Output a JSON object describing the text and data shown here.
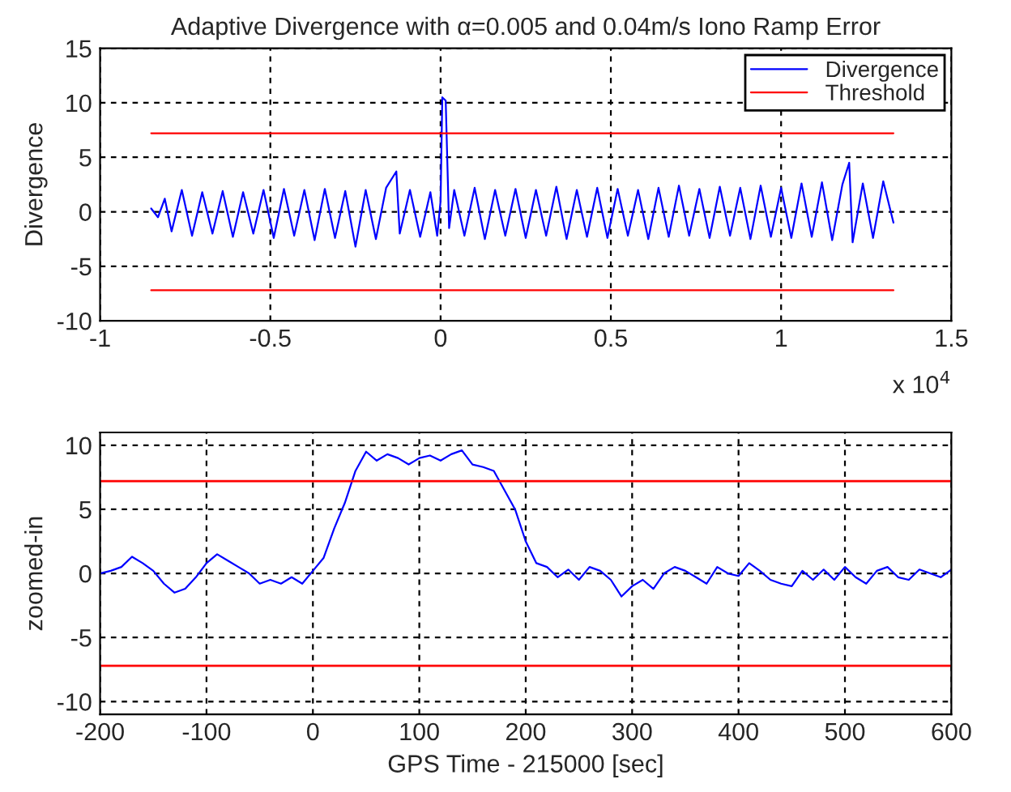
{
  "chart_data": [
    {
      "type": "line",
      "title": "Adaptive Divergence with α=0.005 and 0.04m/s Iono Ramp Error",
      "ylabel": "Divergence",
      "xlim": [
        -1,
        1.5
      ],
      "xticks": [
        -1,
        -0.5,
        0,
        0.5,
        1,
        1.5
      ],
      "ylim": [
        -10,
        15
      ],
      "yticks": [
        -10,
        -5,
        0,
        5,
        10,
        15
      ],
      "grid": true,
      "legend": "top right",
      "line_style": "solid",
      "annotations": [
        "x 10$^{4}$"
      ],
      "series": [
        {
          "name": "Divergence",
          "color": "#0000ff",
          "x": [
            -0.85,
            -0.83,
            -0.81,
            -0.79,
            -0.76,
            -0.73,
            -0.7,
            -0.67,
            -0.64,
            -0.61,
            -0.58,
            -0.55,
            -0.52,
            -0.49,
            -0.46,
            -0.43,
            -0.4,
            -0.37,
            -0.34,
            -0.31,
            -0.28,
            -0.25,
            -0.22,
            -0.19,
            -0.16,
            -0.13,
            -0.12,
            -0.09,
            -0.06,
            -0.03,
            -0.01,
            0,
            0.005,
            0.015,
            0.025,
            0.04,
            0.07,
            0.1,
            0.13,
            0.16,
            0.19,
            0.22,
            0.25,
            0.28,
            0.31,
            0.34,
            0.37,
            0.4,
            0.43,
            0.46,
            0.49,
            0.52,
            0.55,
            0.58,
            0.61,
            0.64,
            0.67,
            0.7,
            0.73,
            0.76,
            0.79,
            0.82,
            0.85,
            0.88,
            0.91,
            0.94,
            0.97,
            1.0,
            1.03,
            1.06,
            1.09,
            1.12,
            1.15,
            1.18,
            1.2,
            1.21,
            1.24,
            1.27,
            1.3,
            1.33
          ],
          "values": [
            0.3,
            -0.5,
            1.2,
            -1.8,
            2.0,
            -2.2,
            1.8,
            -2.0,
            1.9,
            -2.3,
            1.8,
            -2.0,
            2.0,
            -2.4,
            2.1,
            -2.2,
            2.0,
            -2.6,
            2.1,
            -2.4,
            1.9,
            -3.2,
            2.0,
            -2.5,
            2.2,
            3.7,
            -2.0,
            2.0,
            -2.3,
            1.8,
            -2.2,
            1.0,
            10.5,
            10.2,
            -1.5,
            2.0,
            -2.2,
            2.2,
            -2.5,
            2.0,
            -2.2,
            2.1,
            -2.4,
            2.0,
            -2.2,
            2.3,
            -2.5,
            2.0,
            -2.3,
            2.2,
            -2.4,
            2.1,
            -2.2,
            2.0,
            -2.5,
            2.2,
            -2.3,
            2.4,
            -2.2,
            2.1,
            -2.4,
            2.3,
            -2.2,
            2.2,
            -2.5,
            2.4,
            -2.3,
            2.2,
            -2.4,
            2.6,
            -2.3,
            2.7,
            -2.6,
            2.5,
            4.5,
            -2.8,
            2.6,
            -2.4,
            2.8,
            -1.0
          ]
        },
        {
          "name": "Threshold",
          "color": "#ff0000",
          "x": [
            -0.85,
            1.33
          ],
          "values": [
            7.2,
            7.2
          ]
        },
        {
          "color": "#ff0000",
          "x": [
            -0.85,
            1.33
          ],
          "values": [
            -7.2,
            -7.2
          ]
        }
      ]
    },
    {
      "type": "line",
      "xlabel": "GPS Time - 215000 [sec]",
      "ylabel": "zoomed-in",
      "xlim": [
        -200,
        600
      ],
      "xticks": [
        -200,
        -100,
        0,
        100,
        200,
        300,
        400,
        500,
        600
      ],
      "ylim": [
        -11,
        11
      ],
      "yticks": [
        -10,
        -5,
        0,
        5,
        10
      ],
      "grid": true,
      "line_style": "solid",
      "ref_lines": [
        {
          "axis": "y",
          "value": 7.2,
          "color": "#ff0000"
        },
        {
          "axis": "y",
          "value": -7.2,
          "color": "#ff0000"
        }
      ],
      "series": [
        {
          "color": "#0000ff",
          "x": [
            -200,
            -190,
            -180,
            -170,
            -160,
            -150,
            -140,
            -130,
            -120,
            -110,
            -100,
            -90,
            -80,
            -70,
            -60,
            -50,
            -40,
            -30,
            -20,
            -10,
            0,
            10,
            20,
            30,
            40,
            50,
            60,
            70,
            80,
            90,
            100,
            110,
            120,
            130,
            140,
            150,
            160,
            170,
            180,
            190,
            200,
            210,
            220,
            230,
            240,
            250,
            260,
            270,
            280,
            290,
            300,
            310,
            320,
            330,
            340,
            350,
            360,
            370,
            380,
            390,
            400,
            410,
            420,
            430,
            440,
            450,
            460,
            470,
            480,
            490,
            500,
            510,
            520,
            530,
            540,
            550,
            560,
            570,
            580,
            590,
            600
          ],
          "values": [
            0,
            0.2,
            0.5,
            1.3,
            0.8,
            0.2,
            -0.8,
            -1.5,
            -1.2,
            -0.3,
            0.8,
            1.5,
            1.0,
            0.5,
            0,
            -0.8,
            -0.5,
            -0.8,
            -0.3,
            -0.8,
            0.2,
            1.2,
            3.5,
            5.5,
            8,
            9.5,
            8.8,
            9.3,
            9.0,
            8.5,
            9.0,
            9.2,
            8.8,
            9.3,
            9.6,
            8.5,
            8.3,
            8.0,
            6.5,
            5.0,
            2.5,
            0.8,
            0.5,
            -0.3,
            0.3,
            -0.5,
            0.5,
            0.2,
            -0.5,
            -1.8,
            -1.0,
            -0.5,
            -1.2,
            0,
            0.5,
            0.2,
            -0.3,
            -0.8,
            0.5,
            0,
            -0.2,
            0.8,
            0.2,
            -0.5,
            -0.8,
            -1.0,
            0.2,
            -0.5,
            0.3,
            -0.5,
            0.5,
            -0.3,
            -0.8,
            0.2,
            0.5,
            -0.3,
            -0.5,
            0.3,
            0,
            -0.3,
            0.3
          ]
        }
      ]
    }
  ]
}
